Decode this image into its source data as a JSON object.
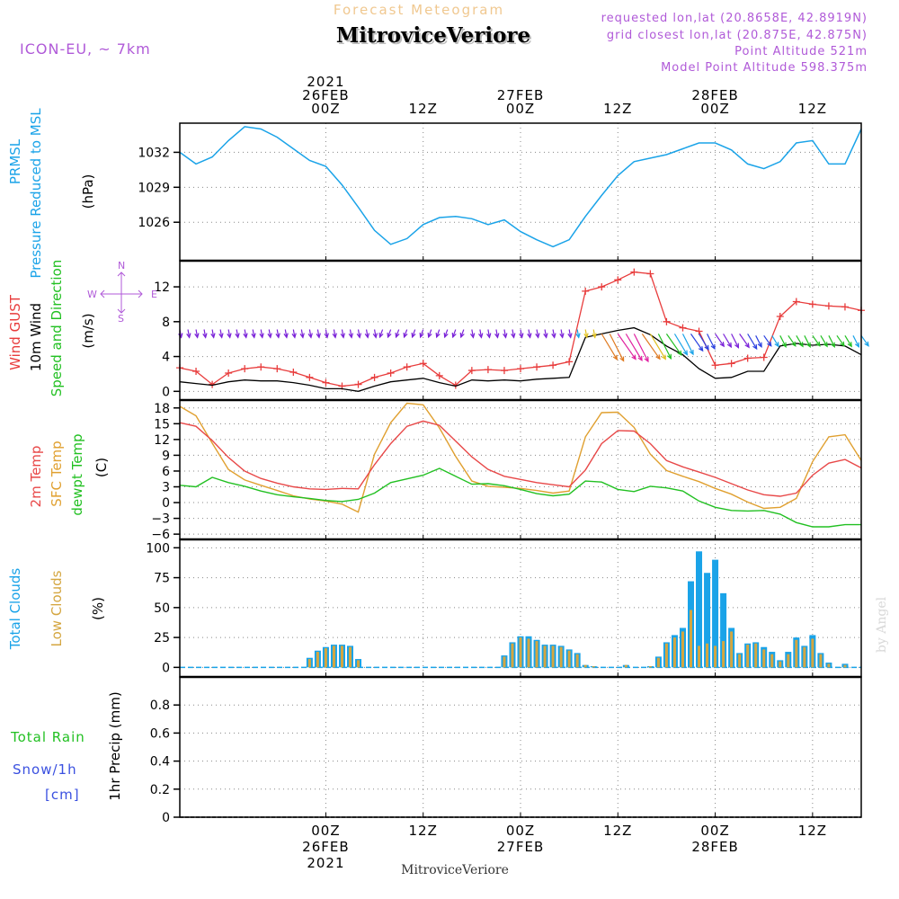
{
  "header": {
    "subtitle": "Forecast Meteogram",
    "location": "MitroviceVeriore",
    "model": "ICON-EU, ~ 7km",
    "requested": "requested lon,lat (20.8658E, 42.8919N)",
    "closest": "grid closest lon,lat (20.875E, 42.875N)",
    "point_altitude": "Point Altitude 521m",
    "model_altitude": "Model Point Altitude 598.375m",
    "footer_location": "MitroviceVeriore",
    "watermark": "by Angel"
  },
  "time_axis": {
    "hours_start": -18,
    "hours_end": 66,
    "ticks": [
      {
        "hour": 0,
        "top": [
          "2021",
          "26FEB",
          "00Z"
        ],
        "bottom": [
          "00Z",
          "26FEB",
          "2021"
        ]
      },
      {
        "hour": 12,
        "top": [
          "12Z"
        ],
        "bottom": [
          "12Z"
        ]
      },
      {
        "hour": 24,
        "top": [
          "27FEB",
          "00Z"
        ],
        "bottom": [
          "00Z",
          "27FEB"
        ]
      },
      {
        "hour": 36,
        "top": [
          "12Z"
        ],
        "bottom": [
          "12Z"
        ]
      },
      {
        "hour": 48,
        "top": [
          "28FEB",
          "00Z"
        ],
        "bottom": [
          "00Z",
          "28FEB"
        ]
      },
      {
        "hour": 60,
        "top": [
          "12Z"
        ],
        "bottom": [
          "12Z"
        ]
      }
    ]
  },
  "colors": {
    "pressure": "#1aa3e8",
    "gust": "#e83c3c",
    "wind": "#000000",
    "temp2m": "#e84848",
    "sfc": "#e0a030",
    "dewpt": "#22c022",
    "total_clouds": "#1aa3e8",
    "low_clouds": "#d4a640",
    "purple": "#b05ad8",
    "rain_label": "#22c022",
    "snow_label": "#3a50e0",
    "orange_title": "#f0c890"
  },
  "panels": {
    "pressure": {
      "labels": [
        "PRMSL",
        "Pressure Reduced to MSL"
      ],
      "unit": "(hPa)",
      "ylim": [
        1022.7,
        1034.5
      ],
      "yticks": [
        1026,
        1029,
        1032
      ]
    },
    "wind": {
      "labels": [
        "Wind GUST",
        "10m Wind",
        "Speed and Direction"
      ],
      "unit": "(m/s)",
      "ylim": [
        -1,
        15
      ],
      "yticks": [
        0,
        4,
        8,
        12
      ],
      "compass": {
        "n": "N",
        "s": "S",
        "e": "E",
        "w": "W"
      }
    },
    "temperature": {
      "labels": [
        "2m Temp",
        "SFC Temp",
        "dewpt Temp"
      ],
      "unit": "(C)",
      "ylim": [
        -7,
        19.5
      ],
      "yticks": [
        -6,
        -3,
        0,
        3,
        6,
        9,
        12,
        15,
        18
      ]
    },
    "clouds": {
      "labels": [
        "Total Clouds",
        "Low Clouds"
      ],
      "unit": "(%)",
      "ylim": [
        -8,
        107
      ],
      "yticks": [
        0,
        25,
        50,
        75,
        100
      ]
    },
    "precip": {
      "labels": [
        "Total  Rain",
        "Snow/1h",
        "[cm]"
      ],
      "unit": "1hr Precip (mm)",
      "ylim": [
        0,
        1.0
      ],
      "yticks": [
        0,
        0.2,
        0.4,
        0.6,
        0.8
      ]
    }
  },
  "chart_data": {
    "type": "line",
    "x_unit": "hours from 2021-02-26 00Z",
    "pressure": {
      "name": "PRMSL",
      "x": [
        -18,
        -16,
        -14,
        -12,
        -10,
        -8,
        -6,
        -4,
        -2,
        0,
        2,
        4,
        6,
        8,
        10,
        12,
        14,
        16,
        18,
        20,
        22,
        24,
        26,
        28,
        30,
        32,
        34,
        36,
        38,
        40,
        42,
        44,
        46,
        48,
        50,
        52,
        54,
        56,
        58,
        60,
        62,
        64,
        66
      ],
      "y": [
        1032.0,
        1031.0,
        1031.6,
        1033.0,
        1034.2,
        1034.0,
        1033.3,
        1032.3,
        1031.3,
        1030.8,
        1029.2,
        1027.3,
        1025.3,
        1024.1,
        1024.6,
        1025.8,
        1026.4,
        1026.5,
        1026.3,
        1025.8,
        1026.2,
        1025.2,
        1024.5,
        1023.9,
        1024.5,
        1026.5,
        1028.3,
        1030.0,
        1031.2,
        1031.5,
        1031.8,
        1032.3,
        1032.8,
        1032.8,
        1032.2,
        1031.0,
        1030.6,
        1031.2,
        1032.8,
        1033.0,
        1031.0,
        1031.0,
        1034.0
      ]
    },
    "gust": {
      "name": "Wind GUST",
      "x": [
        -18,
        -16,
        -14,
        -12,
        -10,
        -8,
        -6,
        -4,
        -2,
        0,
        2,
        4,
        6,
        8,
        10,
        12,
        14,
        16,
        18,
        20,
        22,
        24,
        26,
        28,
        30,
        32,
        34,
        36,
        38,
        40,
        42,
        44,
        46,
        48,
        50,
        52,
        54,
        56,
        58,
        60,
        62,
        64,
        66
      ],
      "y": [
        2.7,
        2.3,
        0.8,
        2.1,
        2.6,
        2.8,
        2.6,
        2.2,
        1.6,
        1.0,
        0.6,
        0.8,
        1.6,
        2.1,
        2.8,
        3.2,
        1.8,
        0.7,
        2.4,
        2.5,
        2.4,
        2.6,
        2.8,
        3.0,
        3.4,
        11.5,
        12.0,
        12.8,
        13.7,
        13.5,
        8.0,
        7.3,
        6.9,
        3.0,
        3.2,
        3.8,
        3.9,
        8.6,
        10.3,
        10.0,
        9.8,
        9.7,
        9.3
      ]
    },
    "wind": {
      "name": "10m Wind",
      "x": [
        -18,
        -16,
        -14,
        -12,
        -10,
        -8,
        -6,
        -4,
        -2,
        0,
        2,
        4,
        6,
        8,
        10,
        12,
        14,
        16,
        18,
        20,
        22,
        24,
        26,
        28,
        30,
        32,
        34,
        36,
        38,
        40,
        42,
        44,
        46,
        48,
        50,
        52,
        54,
        56,
        58,
        60,
        62,
        64,
        66
      ],
      "y": [
        1.1,
        0.9,
        0.7,
        1.1,
        1.3,
        1.2,
        1.2,
        1.0,
        0.7,
        0.3,
        0.3,
        0.0,
        0.6,
        1.1,
        1.3,
        1.5,
        1.0,
        0.6,
        1.3,
        1.2,
        1.3,
        1.2,
        1.4,
        1.5,
        1.6,
        6.2,
        6.6,
        7.0,
        7.3,
        6.5,
        5.2,
        4.2,
        2.6,
        1.5,
        1.6,
        2.3,
        2.3,
        5.2,
        5.5,
        5.3,
        5.4,
        5.2,
        4.2
      ]
    },
    "temp2m": {
      "name": "2m Temp",
      "x": [
        -18,
        -16,
        -14,
        -12,
        -10,
        -8,
        -6,
        -4,
        -2,
        0,
        2,
        4,
        6,
        8,
        10,
        12,
        14,
        16,
        18,
        20,
        22,
        24,
        26,
        28,
        30,
        32,
        34,
        36,
        38,
        40,
        42,
        44,
        46,
        48,
        50,
        52,
        54,
        56,
        58,
        60,
        62,
        64,
        66
      ],
      "y": [
        15.2,
        14.5,
        11.8,
        8.6,
        6.0,
        4.6,
        3.7,
        3.0,
        2.6,
        2.5,
        2.7,
        2.6,
        7.2,
        11.2,
        14.5,
        15.5,
        14.7,
        11.7,
        8.7,
        6.3,
        5.0,
        4.4,
        3.8,
        3.4,
        3.0,
        6.2,
        11.2,
        13.7,
        13.6,
        11.2,
        8.0,
        6.8,
        5.8,
        4.8,
        3.6,
        2.4,
        1.5,
        1.2,
        1.8,
        5.2,
        7.5,
        8.2,
        6.6
      ]
    },
    "sfc_temp": {
      "name": "SFC Temp",
      "x": [
        -18,
        -16,
        -14,
        -12,
        -10,
        -8,
        -6,
        -4,
        -2,
        0,
        2,
        4,
        6,
        8,
        10,
        12,
        14,
        16,
        18,
        20,
        22,
        24,
        26,
        28,
        30,
        32,
        34,
        36,
        38,
        40,
        42,
        44,
        46,
        48,
        50,
        52,
        54,
        56,
        58,
        60,
        62,
        64,
        66
      ],
      "y": [
        18.3,
        16.5,
        11.3,
        6.3,
        4.3,
        3.3,
        2.3,
        1.3,
        0.7,
        0.3,
        -0.3,
        -1.8,
        9.2,
        15.2,
        18.9,
        18.6,
        14.2,
        8.8,
        4.1,
        3.1,
        2.9,
        2.7,
        2.3,
        1.8,
        2.2,
        12.5,
        17.1,
        17.2,
        14.3,
        9.2,
        6.1,
        5.0,
        4.0,
        2.7,
        1.6,
        0.1,
        -1.1,
        -0.9,
        0.8,
        7.8,
        12.5,
        12.9,
        8.0
      ]
    },
    "dewpt": {
      "name": "dewpt Temp",
      "x": [
        -18,
        -16,
        -14,
        -12,
        -10,
        -8,
        -6,
        -4,
        -2,
        0,
        2,
        4,
        6,
        8,
        10,
        12,
        14,
        16,
        18,
        20,
        22,
        24,
        26,
        28,
        30,
        32,
        34,
        36,
        38,
        40,
        42,
        44,
        46,
        48,
        50,
        52,
        54,
        56,
        58,
        60,
        62,
        64,
        66
      ],
      "y": [
        3.3,
        3.0,
        4.8,
        3.8,
        3.1,
        2.2,
        1.5,
        1.1,
        0.8,
        0.4,
        0.2,
        0.6,
        1.8,
        3.8,
        4.5,
        5.2,
        6.5,
        5.0,
        3.5,
        3.6,
        3.2,
        2.5,
        1.7,
        1.3,
        1.6,
        4.1,
        3.9,
        2.5,
        2.1,
        3.1,
        2.8,
        2.2,
        0.3,
        -0.9,
        -1.5,
        -1.6,
        -1.5,
        -2.2,
        -3.8,
        -4.6,
        -4.6,
        -4.2,
        -4.2
      ]
    },
    "clouds": {
      "name": "Total Clouds",
      "x": [
        -2,
        -1,
        0,
        1,
        2,
        3,
        4,
        22,
        23,
        24,
        25,
        26,
        27,
        28,
        29,
        30,
        31,
        32,
        33,
        37,
        40,
        41,
        42,
        43,
        44,
        45,
        46,
        47,
        48,
        49,
        50,
        51,
        52,
        53,
        54,
        55,
        56,
        57,
        58,
        59,
        60,
        61,
        62,
        64
      ],
      "total": [
        8,
        14,
        17,
        19,
        19,
        18,
        7,
        10,
        21,
        26,
        26,
        23,
        19,
        19,
        18,
        15,
        12,
        2,
        1,
        2,
        1,
        9,
        21,
        27,
        33,
        72,
        97,
        79,
        90,
        62,
        33,
        12,
        20,
        21,
        17,
        13,
        6,
        13,
        25,
        18,
        27,
        12,
        4,
        3
      ],
      "low": [
        7,
        13,
        16,
        18,
        18,
        17,
        6,
        9,
        20,
        25,
        24,
        22,
        18,
        18,
        17,
        14,
        11,
        2,
        1,
        2,
        1,
        8,
        20,
        25,
        30,
        48,
        18,
        20,
        18,
        22,
        30,
        11,
        19,
        20,
        15,
        11,
        5,
        11,
        23,
        17,
        24,
        11,
        3,
        2
      ]
    },
    "precip": {
      "name": "1hr Precip",
      "x": [
        -18,
        66
      ],
      "y": [
        0,
        0
      ]
    }
  }
}
